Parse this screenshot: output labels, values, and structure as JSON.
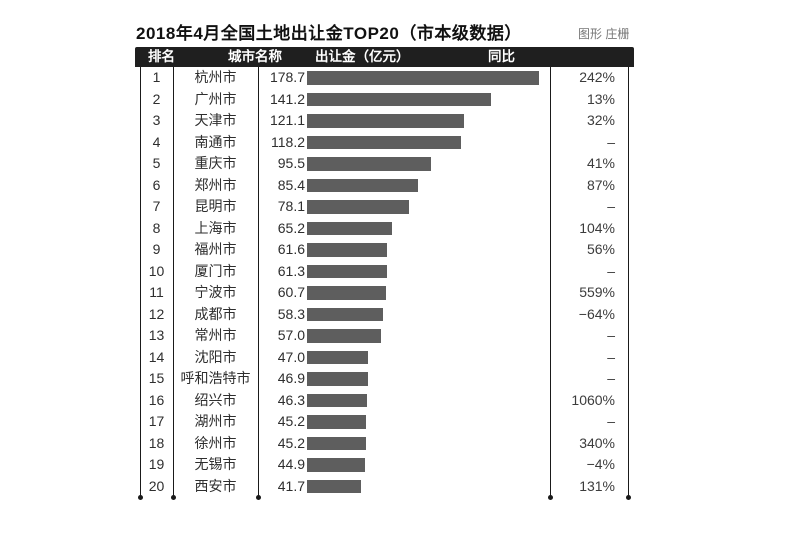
{
  "title": "2018年4月全国土地出让金TOP20（市本级数据）",
  "credit": "图形 庄栅",
  "chart_data": {
    "type": "bar",
    "orientation": "horizontal",
    "title": "2018年4月全国土地出让金TOP20（市本级数据）",
    "columns": {
      "rank": "排名",
      "city": "城市名称",
      "value": "出让金（亿元）",
      "yoy": "同比"
    },
    "rows": [
      {
        "rank": "1",
        "city": "杭州市",
        "value": "178.7",
        "yoy": "242%"
      },
      {
        "rank": "2",
        "city": "广州市",
        "value": "141.2",
        "yoy": "13%"
      },
      {
        "rank": "3",
        "city": "天津市",
        "value": "121.1",
        "yoy": "32%"
      },
      {
        "rank": "4",
        "city": "南通市",
        "value": "118.2",
        "yoy": "–"
      },
      {
        "rank": "5",
        "city": "重庆市",
        "value": "95.5",
        "yoy": "41%"
      },
      {
        "rank": "6",
        "city": "郑州市",
        "value": "85.4",
        "yoy": "87%"
      },
      {
        "rank": "7",
        "city": "昆明市",
        "value": "78.1",
        "yoy": "–"
      },
      {
        "rank": "8",
        "city": "上海市",
        "value": "65.2",
        "yoy": "104%"
      },
      {
        "rank": "9",
        "city": "福州市",
        "value": "61.6",
        "yoy": "56%"
      },
      {
        "rank": "10",
        "city": "厦门市",
        "value": "61.3",
        "yoy": "–"
      },
      {
        "rank": "11",
        "city": "宁波市",
        "value": "60.7",
        "yoy": "559%"
      },
      {
        "rank": "12",
        "city": "成都市",
        "value": "58.3",
        "yoy": "−64%"
      },
      {
        "rank": "13",
        "city": "常州市",
        "value": "57.0",
        "yoy": "–"
      },
      {
        "rank": "14",
        "city": "沈阳市",
        "value": "47.0",
        "yoy": "–"
      },
      {
        "rank": "15",
        "city": "呼和浩特市",
        "value": "46.9",
        "yoy": "–"
      },
      {
        "rank": "16",
        "city": "绍兴市",
        "value": "46.3",
        "yoy": "1060%"
      },
      {
        "rank": "17",
        "city": "湖州市",
        "value": "45.2",
        "yoy": "–"
      },
      {
        "rank": "18",
        "city": "徐州市",
        "value": "45.2",
        "yoy": "340%"
      },
      {
        "rank": "19",
        "city": "无锡市",
        "value": "44.9",
        "yoy": "−4%"
      },
      {
        "rank": "20",
        "city": "西安市",
        "value": "41.7",
        "yoy": "131%"
      }
    ],
    "xlim": [
      0,
      180
    ],
    "value_unit": "亿元",
    "grid": "off",
    "legend": "none",
    "bar_color": "#5e5e5e",
    "header_bg": "#1f1f1f",
    "header_text_color": "#ffffff"
  }
}
